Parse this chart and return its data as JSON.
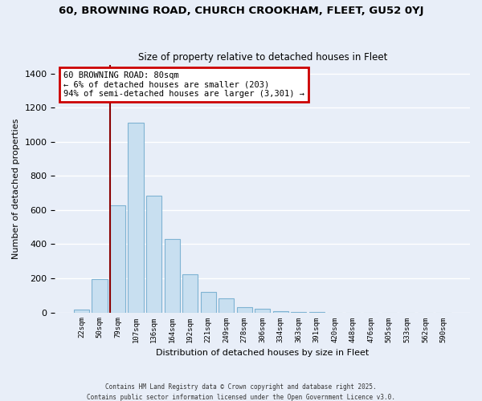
{
  "title_line1": "60, BROWNING ROAD, CHURCH CROOKHAM, FLEET, GU52 0YJ",
  "title_line2": "Size of property relative to detached houses in Fleet",
  "xlabel": "Distribution of detached houses by size in Fleet",
  "ylabel": "Number of detached properties",
  "bar_color": "#c8dff0",
  "bar_edge_color": "#7fb3d3",
  "background_color": "#e8eef8",
  "grid_color": "white",
  "annotation_box_color": "white",
  "annotation_box_edge_color": "#cc0000",
  "property_line_color": "#8b0000",
  "categories": [
    "22sqm",
    "50sqm",
    "79sqm",
    "107sqm",
    "136sqm",
    "164sqm",
    "192sqm",
    "221sqm",
    "249sqm",
    "278sqm",
    "306sqm",
    "334sqm",
    "363sqm",
    "391sqm",
    "420sqm",
    "448sqm",
    "476sqm",
    "505sqm",
    "533sqm",
    "562sqm",
    "590sqm"
  ],
  "values": [
    15,
    195,
    630,
    1110,
    685,
    430,
    222,
    122,
    82,
    30,
    22,
    5,
    2,
    2,
    0,
    0,
    0,
    0,
    0,
    0,
    0
  ],
  "property_line_index": 2,
  "annotation_title": "60 BROWNING ROAD: 80sqm",
  "annotation_line2": "← 6% of detached houses are smaller (203)",
  "annotation_line3": "94% of semi-detached houses are larger (3,301) →",
  "ylim": [
    0,
    1450
  ],
  "yticks": [
    0,
    200,
    400,
    600,
    800,
    1000,
    1200,
    1400
  ],
  "footer_line1": "Contains HM Land Registry data © Crown copyright and database right 2025.",
  "footer_line2": "Contains public sector information licensed under the Open Government Licence v3.0."
}
